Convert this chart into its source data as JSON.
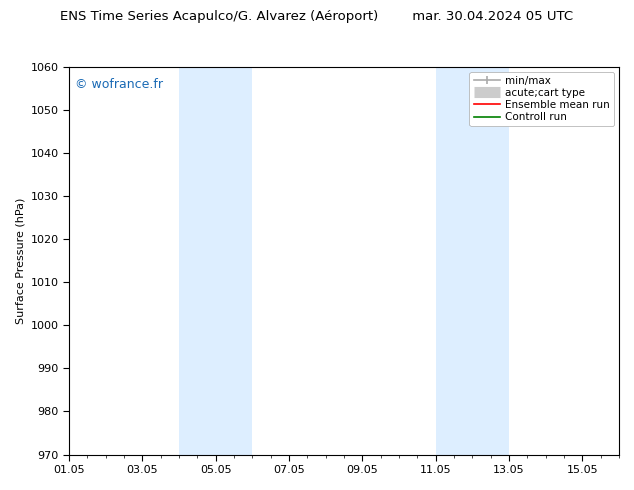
{
  "title": "ENS Time Series Acapulco/G. Alvarez (Aéroport)        mar. 30.04.2024 05 UTC",
  "ylabel": "Surface Pressure (hPa)",
  "ylim": [
    970,
    1060
  ],
  "yticks": [
    970,
    980,
    990,
    1000,
    1010,
    1020,
    1030,
    1040,
    1050,
    1060
  ],
  "xtick_positions": [
    1,
    3,
    5,
    7,
    9,
    11,
    13,
    15
  ],
  "xtick_labels": [
    "01.05",
    "03.05",
    "05.05",
    "07.05",
    "09.05",
    "11.05",
    "13.05",
    "15.05"
  ],
  "xlim": [
    1,
    16
  ],
  "shaded_bands": [
    {
      "xstart": 4.0,
      "xend": 6.0
    },
    {
      "xstart": 11.0,
      "xend": 13.0
    }
  ],
  "band_color": "#ddeeff",
  "watermark": "© wofrance.fr",
  "watermark_color": "#1a6ab5",
  "legend_entries": [
    {
      "label": "min/max",
      "color": "#aaaaaa",
      "lw": 1.2,
      "style": "errorbar"
    },
    {
      "label": "acute;cart type",
      "color": "#cccccc",
      "lw": 8,
      "style": "thick"
    },
    {
      "label": "Ensemble mean run",
      "color": "red",
      "lw": 1.2,
      "style": "line"
    },
    {
      "label": "Controll run",
      "color": "green",
      "lw": 1.2,
      "style": "line"
    }
  ],
  "bg_color": "#ffffff",
  "fig_width": 6.34,
  "fig_height": 4.9,
  "dpi": 100
}
